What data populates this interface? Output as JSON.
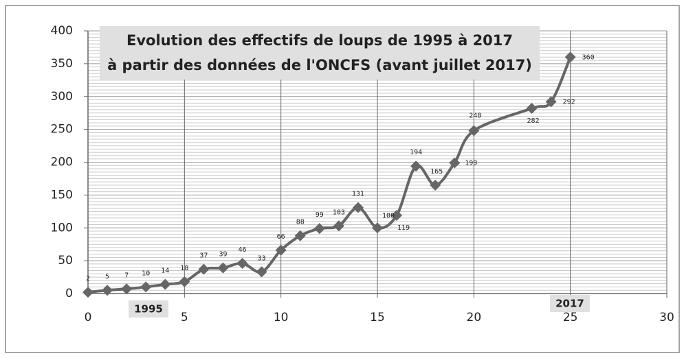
{
  "chart_data": {
    "type": "line",
    "title": [
      "Evolution des effectifs de loups de 1995 à 2017",
      "à partir des données de l'ONCFS (avant juillet 2017)"
    ],
    "annotations": [
      "1995",
      "2017"
    ],
    "x": [
      0,
      1,
      2,
      3,
      4,
      5,
      6,
      7,
      8,
      9,
      10,
      11,
      12,
      13,
      14,
      15,
      16,
      17,
      18,
      19,
      20,
      23,
      24,
      25
    ],
    "series": [
      {
        "color": "#666666",
        "values": [
          2,
          5,
          7,
          10,
          14,
          18,
          37,
          39,
          46,
          33,
          66,
          88,
          99,
          103,
          131,
          100,
          119,
          194,
          165,
          199,
          248,
          282,
          292,
          360
        ]
      }
    ],
    "xlim": [
      0,
      30
    ],
    "xticks": [
      0,
      5,
      10,
      15,
      20,
      25,
      30
    ],
    "ylim": [
      0,
      400
    ],
    "yticks": [
      0,
      50,
      100,
      150,
      200,
      250,
      300,
      350,
      400
    ],
    "grid": true
  }
}
